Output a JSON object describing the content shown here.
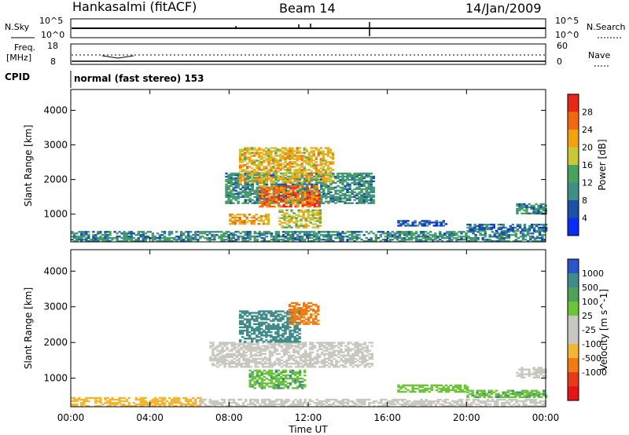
{
  "header": {
    "site": "Hankasalmi (fitACF)",
    "beam": "Beam 14",
    "date": "14/Jan/2009"
  },
  "top_strips": {
    "nsky_label": "N.Sky",
    "nsky_ticks_left": [
      "10^5",
      "10^0"
    ],
    "nsky_ticks_right": [
      "10^5",
      "10^0"
    ],
    "nsearch_label": "N.Search",
    "freq_label": "Freq.",
    "freq_unit": "[MHz]",
    "freq_ticks": [
      "18",
      "8"
    ],
    "nave_label": "Nave",
    "nave_ticks": [
      "60",
      "0"
    ],
    "cpid_label": "CPID",
    "cpid_text": "normal (fast stereo) 153"
  },
  "colors": {
    "power_scale": [
      "#0a2cf5",
      "#1d51a8",
      "#3e8f86",
      "#4aa35c",
      "#c9c838",
      "#f2a20d",
      "#f06a12",
      "#e8261a"
    ],
    "velocity_scale": [
      "#2b55c9",
      "#3f8c8a",
      "#4da25a",
      "#6dc43b",
      "#c8c8c0",
      "#c8c8c0",
      "#f2b632",
      "#f07b13",
      "#e63a18",
      "#e61414"
    ]
  },
  "chart_data": [
    {
      "type": "heatmap",
      "title": "Power",
      "ylabel": "Slant Range [km]",
      "xlabel": "",
      "x_ticks": [
        "00:00",
        "04:00",
        "08:00",
        "12:00",
        "16:00",
        "20:00",
        "00:00"
      ],
      "y_ticks": [
        1000,
        2000,
        3000,
        4000
      ],
      "ylim": [
        200,
        4600
      ],
      "xlim": [
        0,
        24
      ],
      "colorbar": {
        "label": "Power [dB]",
        "ticks": [
          4,
          8,
          12,
          16,
          20,
          24,
          28
        ],
        "range": [
          0,
          32
        ]
      },
      "regions": [
        {
          "t": [
            0,
            24
          ],
          "r": [
            200,
            500
          ],
          "v": 10
        },
        {
          "t": [
            7.8,
            15.3
          ],
          "r": [
            1300,
            2200
          ],
          "v": 11
        },
        {
          "t": [
            8.5,
            13.2
          ],
          "r": [
            1900,
            2900
          ],
          "v": 20
        },
        {
          "t": [
            9.5,
            12.5
          ],
          "r": [
            1200,
            1800
          ],
          "v": 26
        },
        {
          "t": [
            8.0,
            10.0
          ],
          "r": [
            700,
            1000
          ],
          "v": 22
        },
        {
          "t": [
            10.5,
            12.6
          ],
          "r": [
            600,
            1100
          ],
          "v": 18
        },
        {
          "t": [
            16.5,
            19.0
          ],
          "r": [
            650,
            800
          ],
          "v": 6
        },
        {
          "t": [
            20.0,
            24.0
          ],
          "r": [
            500,
            700
          ],
          "v": 8
        },
        {
          "t": [
            22.5,
            24.0
          ],
          "r": [
            1000,
            1300
          ],
          "v": 10
        }
      ]
    },
    {
      "type": "heatmap",
      "title": "Velocity",
      "ylabel": "Slant Range [km]",
      "xlabel": "Time UT",
      "x_ticks": [
        "00:00",
        "04:00",
        "08:00",
        "12:00",
        "16:00",
        "20:00",
        "00:00"
      ],
      "y_ticks": [
        1000,
        2000,
        3000,
        4000
      ],
      "ylim": [
        200,
        4600
      ],
      "xlim": [
        0,
        24
      ],
      "colorbar": {
        "label": "Velocity [m s^-1]",
        "ticks": [
          "1000",
          "500",
          "100",
          "25",
          "-25",
          "-100",
          "-500",
          "-1000"
        ]
      },
      "regions": [
        {
          "t": [
            0,
            6.5
          ],
          "r": [
            200,
            450
          ],
          "v": -60
        },
        {
          "t": [
            6.5,
            24
          ],
          "r": [
            200,
            400
          ],
          "v": 0
        },
        {
          "t": [
            7.0,
            15.2
          ],
          "r": [
            1300,
            2000
          ],
          "v": 0
        },
        {
          "t": [
            8.5,
            11.5
          ],
          "r": [
            2000,
            2900
          ],
          "v": 300
        },
        {
          "t": [
            11.0,
            12.5
          ],
          "r": [
            2500,
            3100
          ],
          "v": -150
        },
        {
          "t": [
            9.0,
            11.8
          ],
          "r": [
            700,
            1200
          ],
          "v": 80
        },
        {
          "t": [
            16.5,
            20.0
          ],
          "r": [
            600,
            800
          ],
          "v": 60
        },
        {
          "t": [
            20.0,
            24.0
          ],
          "r": [
            450,
            650
          ],
          "v": 80
        },
        {
          "t": [
            22.5,
            24.0
          ],
          "r": [
            1000,
            1300
          ],
          "v": 0
        }
      ]
    }
  ]
}
